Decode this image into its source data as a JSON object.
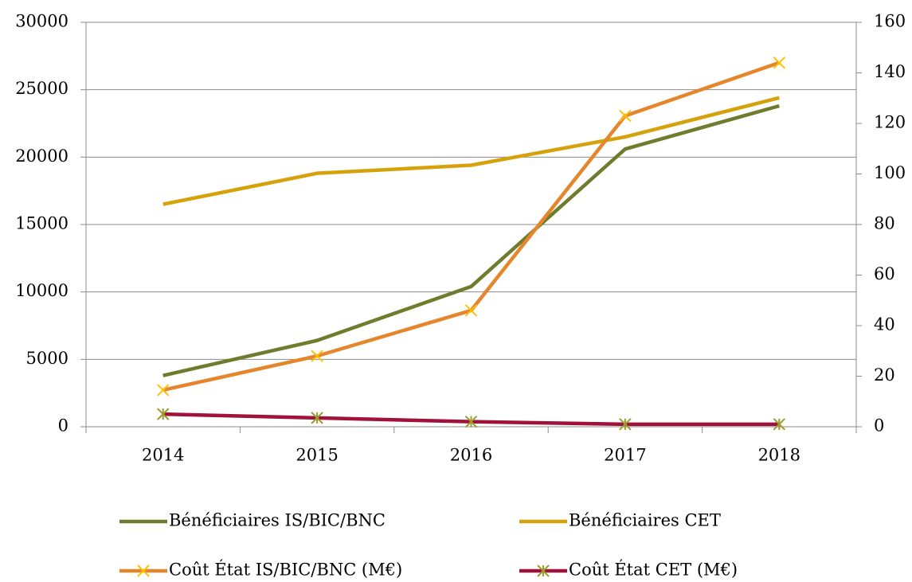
{
  "chart_data": {
    "type": "line",
    "categories": [
      "2014",
      "2015",
      "2016",
      "2017",
      "2018"
    ],
    "series": [
      {
        "name": "Bénéficiaires IS/BIC/BNC",
        "color": "#6f7c2e",
        "values": [
          3800,
          6400,
          10400,
          20600,
          23800
        ]
      },
      {
        "name": "Bénéficiaires CET",
        "color": "#d6a20c",
        "values": [
          16500,
          18800,
          19400,
          21500,
          24400
        ]
      },
      {
        "name": "Coût État IS/BIC/BNC (M€)",
        "color": "#e5862c",
        "marker": "x",
        "marker_color": "#ffc000",
        "axis": "y2",
        "values": [
          14.5,
          28,
          46,
          123,
          144
        ]
      },
      {
        "name": "Coût État CET (M€)",
        "color": "#a0123a",
        "marker": "asterisk",
        "marker_color": "#9b9b2e",
        "axis": "y2",
        "values": [
          5,
          3.5,
          2,
          1,
          1
        ]
      }
    ],
    "ylim": [
      0,
      30000
    ],
    "yticks": [
      0,
      5000,
      10000,
      15000,
      20000,
      25000,
      30000
    ],
    "y2lim": [
      0,
      160
    ],
    "y2ticks": [
      0,
      20,
      40,
      60,
      80,
      100,
      120,
      140,
      160
    ],
    "grid": true,
    "legend": "bottom"
  }
}
